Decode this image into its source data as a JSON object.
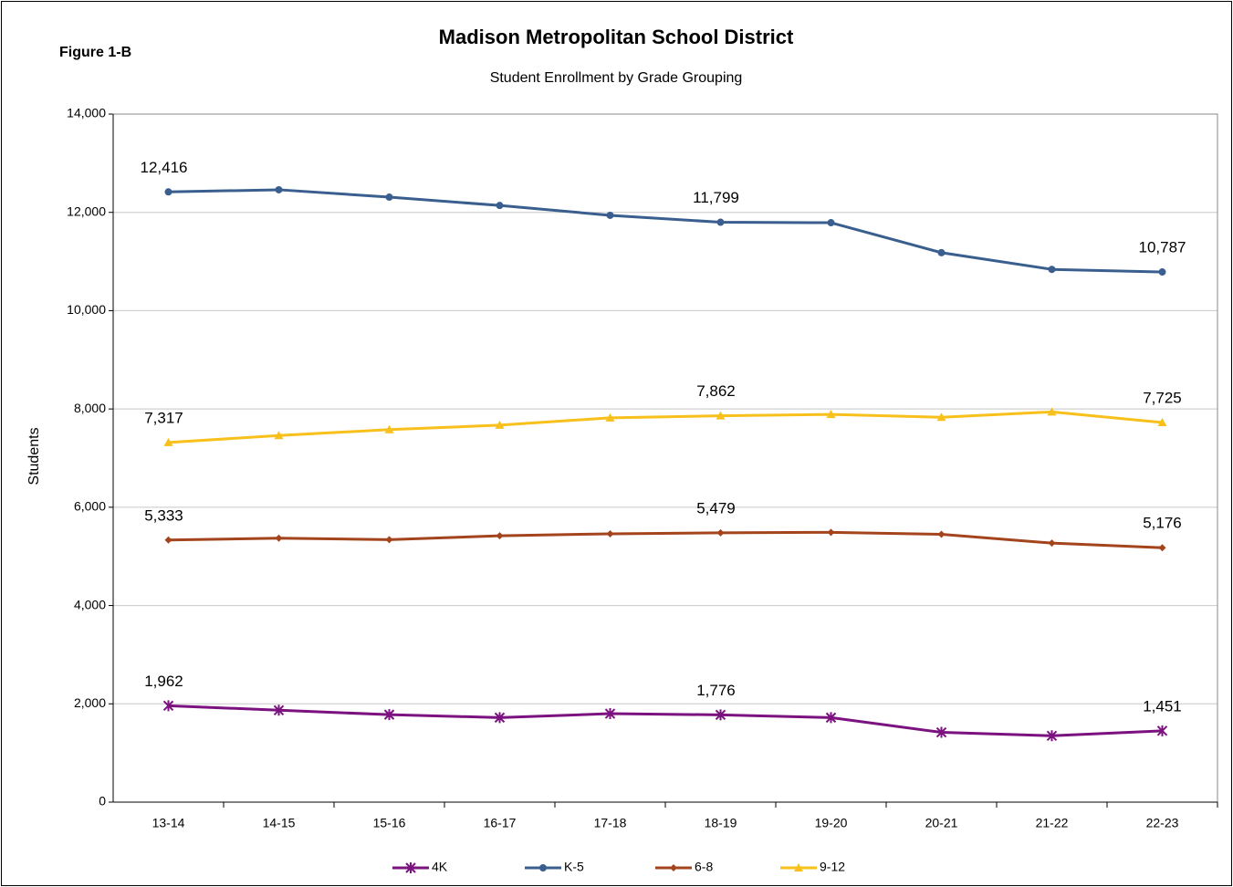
{
  "chart_data": {
    "type": "line",
    "figure_label": "Figure 1-B",
    "title": "Madison Metropolitan School District",
    "subtitle": "Student Enrollment by Grade Grouping",
    "y_label": "Students",
    "categories": [
      "13-14",
      "14-15",
      "15-16",
      "16-17",
      "17-18",
      "18-19",
      "19-20",
      "20-21",
      "21-22",
      "22-23"
    ],
    "ylim": [
      0,
      14000
    ],
    "yticks": [
      0,
      {
        "value": 2000,
        "label": "2,000"
      },
      {
        "value": 4000,
        "label": "4,000"
      },
      {
        "value": 6000,
        "label": "6,000"
      },
      {
        "value": 8000,
        "label": "8,000"
      },
      {
        "value": 10000,
        "label": "10,000"
      },
      {
        "value": 12000,
        "label": "12,000"
      },
      {
        "value": 14000,
        "label": "14,000"
      }
    ],
    "grid": true,
    "legend": "bottom",
    "series": [
      {
        "name": "4K",
        "color": "#7b1280",
        "marker": "star",
        "values": [
          1962,
          1870,
          1780,
          1720,
          1800,
          1776,
          1720,
          1420,
          1350,
          1451
        ],
        "value_labels": [
          "1,962",
          null,
          null,
          null,
          null,
          "1,776",
          null,
          null,
          null,
          "1,451"
        ]
      },
      {
        "name": "K-5",
        "color": "#3a5f8f",
        "marker": "circle",
        "values": [
          12416,
          12460,
          12310,
          12140,
          11940,
          11799,
          11790,
          11180,
          10840,
          10787
        ],
        "value_labels": [
          "12,416",
          null,
          null,
          null,
          null,
          "11,799",
          null,
          null,
          null,
          "10,787"
        ]
      },
      {
        "name": "6-8",
        "color": "#a4441c",
        "marker": "diamond",
        "values": [
          5333,
          5370,
          5340,
          5420,
          5460,
          5479,
          5490,
          5450,
          5270,
          5176
        ],
        "value_labels": [
          "5,333",
          null,
          null,
          null,
          null,
          "5,479",
          null,
          null,
          null,
          "5,176"
        ]
      },
      {
        "name": "9-12",
        "color": "#f7c01b",
        "marker": "triangle",
        "values": [
          7317,
          7460,
          7580,
          7670,
          7820,
          7862,
          7890,
          7830,
          7940,
          7725
        ],
        "value_labels": [
          "7,317",
          null,
          null,
          null,
          null,
          "7,862",
          null,
          null,
          null,
          "7,725"
        ]
      }
    ]
  }
}
